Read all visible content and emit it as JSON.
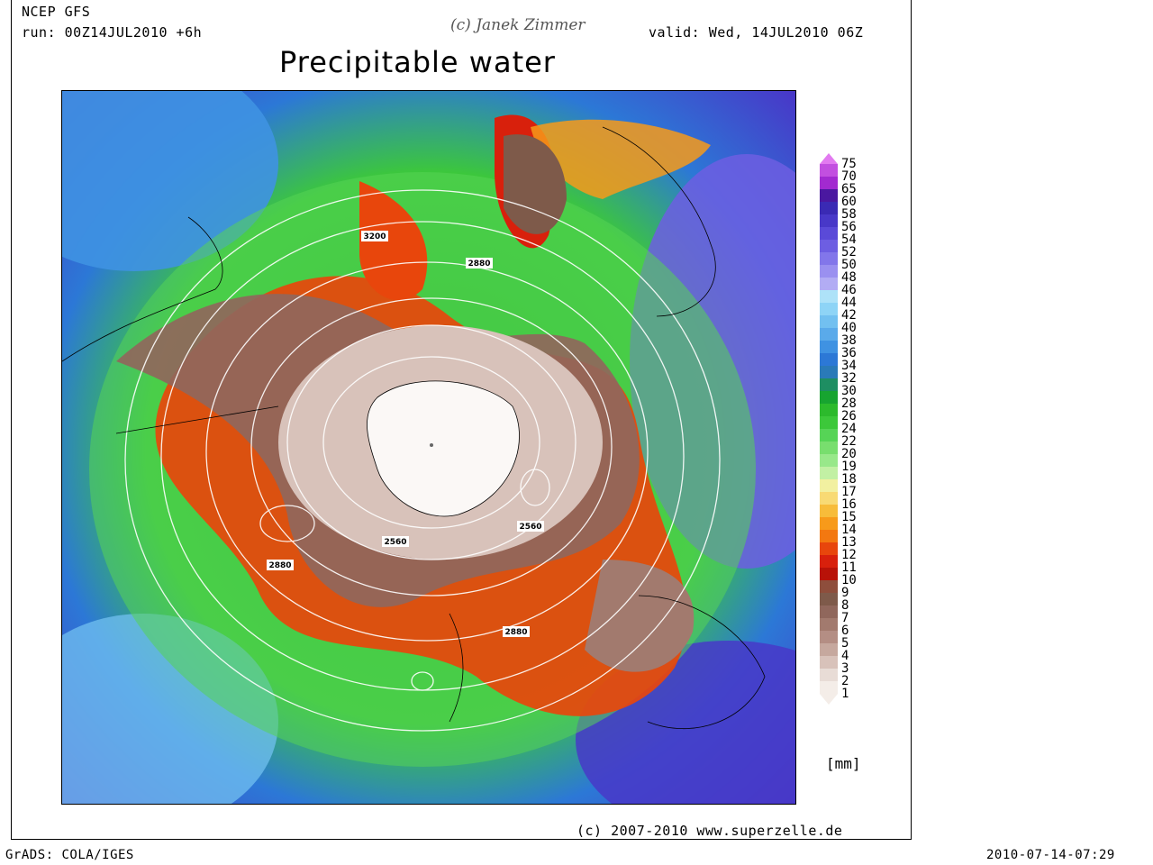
{
  "header": {
    "model": "NCEP GFS",
    "run": "run: 00Z14JUL2010 +6h",
    "author": "(c) Janek Zimmer",
    "valid": "valid: Wed, 14JUL2010 06Z",
    "title": "Precipitable water"
  },
  "map": {
    "contour_labels": [
      "3200",
      "2880",
      "2560",
      "2560",
      "2880",
      "2880"
    ]
  },
  "legend": {
    "unit": "[mm]",
    "levels": [
      "75",
      "70",
      "65",
      "60",
      "58",
      "56",
      "54",
      "52",
      "50",
      "48",
      "46",
      "44",
      "42",
      "40",
      "38",
      "36",
      "34",
      "32",
      "30",
      "28",
      "26",
      "24",
      "22",
      "20",
      "19",
      "18",
      "17",
      "16",
      "15",
      "14",
      "13",
      "12",
      "11",
      "10",
      "9",
      "8",
      "7",
      "6",
      "5",
      "4",
      "3",
      "2",
      "1"
    ],
    "colors": [
      "#e27af0",
      "#c24fe0",
      "#a22ad0",
      "#4a18a0",
      "#3a2ab4",
      "#4838c8",
      "#5a4ad8",
      "#6d5ee2",
      "#8276ea",
      "#9a90f0",
      "#b2acf4",
      "#aee2f8",
      "#8ed4f6",
      "#72c0f0",
      "#5aaaea",
      "#3f92e2",
      "#2c78d6",
      "#2a7ab8",
      "#1e8e62",
      "#17a430",
      "#2cba2c",
      "#3cc83a",
      "#56d456",
      "#78de6e",
      "#98e88a",
      "#c2f0a4",
      "#f2f0a0",
      "#f8da74",
      "#f7bc3a",
      "#f79a1a",
      "#f37810",
      "#e8460c",
      "#d8200c",
      "#b81208",
      "#8e4e3c",
      "#7e5a4a",
      "#90675c",
      "#a27a6e",
      "#b48e84",
      "#c6a89e",
      "#d8c2ba",
      "#e8dcd6",
      "#f4ede8"
    ]
  },
  "footer": {
    "copyright": "(c) 2007-2010 www.superzelle.de",
    "grads": "GrADS: COLA/IGES",
    "timestamp": "2010-07-14-07:29"
  }
}
